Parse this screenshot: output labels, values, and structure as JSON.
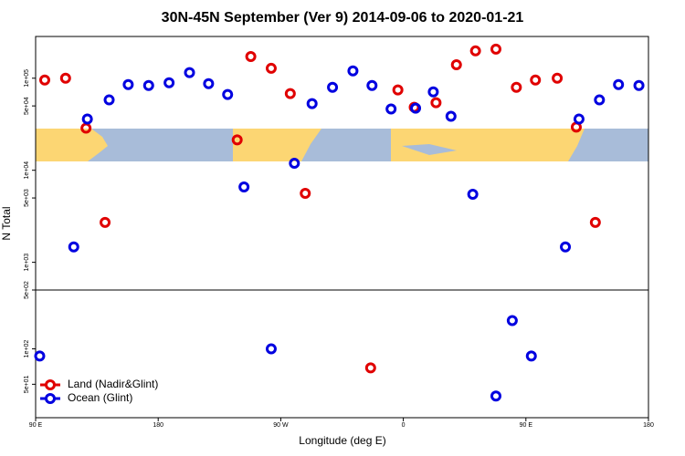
{
  "chart_data": {
    "type": "scatter",
    "title": "30N-45N September (Ver 9)   2014-09-06 to 2020-01-21",
    "xlabel": "Longitude (deg E)",
    "ylabel": "N Total",
    "xlim": [
      90,
      540
    ],
    "xticks": [
      {
        "value": 90,
        "label": "90 E"
      },
      180,
      {
        "value": 270,
        "label": "90 W"
      },
      {
        "value": 360,
        "label": "0"
      },
      {
        "value": 450,
        "label": "90 E"
      },
      {
        "value": 540,
        "label": "180"
      }
    ],
    "log_y": true,
    "legend": "bottom-left",
    "panels": [
      {
        "ylim": [
          500,
          284000
        ],
        "yticks": [
          {
            "value": 100000,
            "label": "1e+05"
          },
          {
            "value": 50000,
            "label": "5e+04"
          },
          {
            "value": 10000,
            "label": "1e+04"
          },
          {
            "value": 5000,
            "label": "5e+03"
          },
          {
            "value": 1000,
            "label": "1e+03"
          },
          {
            "value": 500,
            "label": "5e+02"
          }
        ]
      },
      {
        "ylim": [
          26,
          316
        ],
        "yticks": [
          {
            "value": 100,
            "label": "1e+02"
          },
          {
            "value": 50,
            "label": "5e+01"
          }
        ]
      }
    ],
    "series": [
      {
        "name": "Land (Nadir&Glint)",
        "color": "#e00000",
        "x": [
          96.7,
          112,
          127,
          141,
          238,
          248,
          263,
          277,
          288,
          336,
          356,
          368,
          384,
          399,
          413,
          428,
          443,
          457,
          473,
          487,
          501
        ],
        "values": [
          95500,
          100000,
          28700,
          2710,
          21400,
          172000,
          128000,
          68100,
          5610,
          68.9,
          74500,
          48400,
          54200,
          140000,
          198000,
          207000,
          79600,
          95600,
          100000,
          29400,
          2710
        ]
      },
      {
        "name": "Ocean (Glint)",
        "color": "#0000e0",
        "x": [
          93,
          118,
          128,
          144,
          158,
          173,
          188,
          203,
          217,
          231,
          243,
          263,
          280,
          293,
          308,
          323,
          337,
          351,
          369,
          382,
          395,
          411,
          428,
          440,
          454,
          479,
          489,
          504,
          518,
          533
        ],
        "values": [
          86.8,
          1470,
          36000,
          58100,
          85300,
          83400,
          89300,
          115000,
          87300,
          66500,
          6580,
          100,
          11900,
          53000,
          79700,
          120000,
          83400,
          46300,
          47300,
          71100,
          38600,
          5480,
          39.7,
          174,
          86.8,
          1470,
          36000,
          58100,
          85300,
          83400
        ]
      }
    ]
  }
}
